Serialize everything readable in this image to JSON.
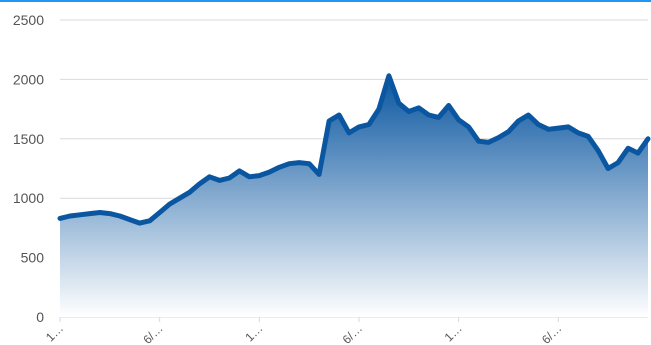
{
  "colors": {
    "top_border": "#2196f3",
    "line": "#0a56a0",
    "area_top": "#0a56a0",
    "area_bottom": "#ffffff",
    "grid": "#d9d9d9",
    "tick_text": "#555555"
  },
  "chart_data": {
    "type": "area",
    "title": "",
    "xlabel": "",
    "ylabel": "",
    "ylim": [
      0,
      2500
    ],
    "grid": true,
    "legend": "none",
    "y_ticks": [
      0,
      500,
      1000,
      1500,
      2000,
      2500
    ],
    "x_tick_labels": [
      "1…",
      "6/…",
      "1…",
      "6/…",
      "1…",
      "6/…"
    ],
    "x_tick_positions": [
      0,
      5,
      10,
      15,
      20,
      25
    ],
    "x": [
      0,
      0.5,
      1,
      1.5,
      2,
      2.5,
      3,
      3.5,
      4,
      4.5,
      5,
      5.5,
      6,
      6.5,
      7,
      7.5,
      8,
      8.5,
      9,
      9.5,
      10,
      10.5,
      11,
      11.5,
      12,
      12.5,
      13,
      13.5,
      14,
      14.5,
      15,
      15.5,
      16,
      16.5,
      17,
      17.5,
      18,
      18.5,
      19,
      19.5,
      20,
      20.5,
      21,
      21.5,
      22,
      22.5,
      23,
      23.5,
      24,
      24.5,
      25,
      25.5,
      26,
      26.5,
      27,
      27.5,
      28,
      28.5,
      29,
      29.5
    ],
    "series": [
      {
        "values": [
          830,
          850,
          860,
          870,
          880,
          870,
          850,
          820,
          790,
          810,
          880,
          950,
          1000,
          1050,
          1120,
          1180,
          1150,
          1170,
          1230,
          1180,
          1190,
          1220,
          1260,
          1290,
          1300,
          1290,
          1200,
          1650,
          1700,
          1550,
          1600,
          1620,
          1750,
          2030,
          1800,
          1730,
          1760,
          1700,
          1680,
          1780,
          1660,
          1600,
          1480,
          1470,
          1510,
          1560,
          1650,
          1700,
          1620,
          1580,
          1590,
          1600,
          1550,
          1520,
          1400,
          1250,
          1300,
          1420,
          1380,
          1500
        ]
      }
    ]
  }
}
